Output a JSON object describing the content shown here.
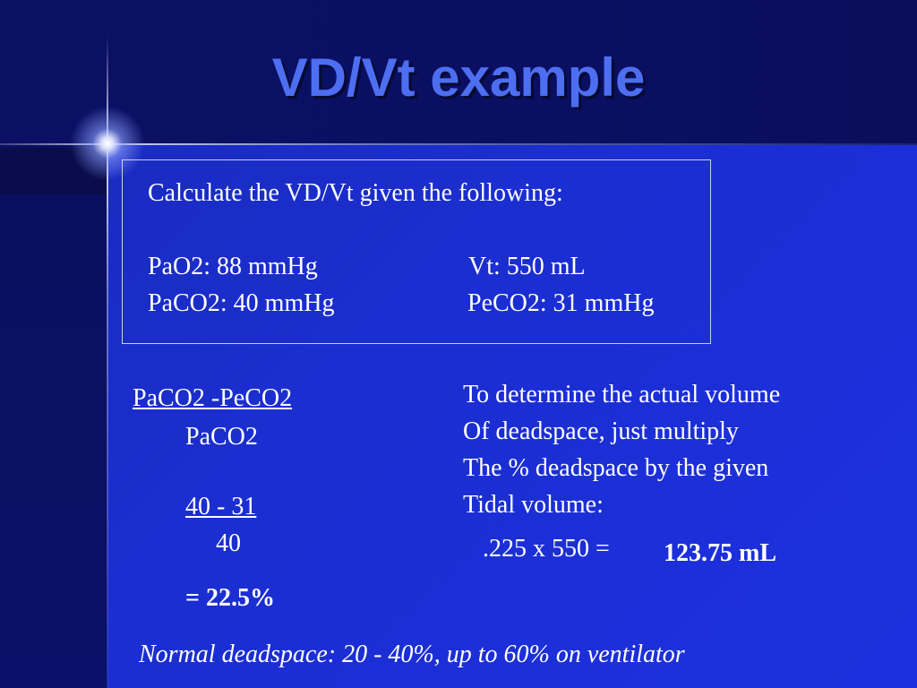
{
  "title": "VD/Vt example",
  "problem": {
    "prompt": "Calculate the VD/Vt given the following:",
    "pao2": "PaO2: 88 mmHg",
    "vt": "Vt: 550 mL",
    "paco2": "PaCO2: 40 mmHg",
    "peco2": "PeCO2: 31 mmHg"
  },
  "formula": {
    "numerator": "PaCO2 -PeCO2",
    "denominator": "PaCO2",
    "sub_numerator": "40 - 31",
    "sub_denominator": "40",
    "result": "= 22.5%"
  },
  "explanation": {
    "line1": "To determine the actual volume",
    "line2": "Of deadspace, just multiply",
    "line3": "The % deadspace by the given",
    "line4": "Tidal volume:",
    "calc": ".225 x 550 =",
    "answer": "123.75 mL"
  },
  "footer": "Normal deadspace: 20 - 40%, up to 60% on ventilator"
}
